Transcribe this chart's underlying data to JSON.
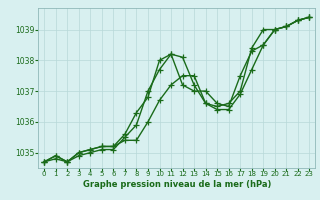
{
  "line1": [
    1034.7,
    1034.8,
    1034.7,
    1034.9,
    1035.0,
    1035.1,
    1035.1,
    1035.5,
    1035.9,
    1037.0,
    1037.7,
    1038.2,
    1038.1,
    1037.2,
    1036.6,
    1036.4,
    1036.4,
    1036.9,
    1037.7,
    1038.5,
    1039.0,
    1039.1,
    1039.3,
    1039.4
  ],
  "line2": [
    1034.7,
    1034.9,
    1034.7,
    1035.0,
    1035.1,
    1035.2,
    1035.2,
    1035.6,
    1036.3,
    1036.8,
    1038.0,
    1038.2,
    1037.2,
    1037.0,
    1037.0,
    1036.6,
    1036.5,
    1037.5,
    1038.3,
    1038.5,
    1039.0,
    1039.1,
    1039.3,
    1039.4
  ],
  "line3": [
    1034.7,
    1034.9,
    1034.7,
    1035.0,
    1035.1,
    1035.2,
    1035.2,
    1035.4,
    1035.4,
    1036.0,
    1036.7,
    1037.2,
    1037.5,
    1037.5,
    1036.6,
    1036.5,
    1036.6,
    1037.0,
    1038.4,
    1039.0,
    1039.0,
    1039.1,
    1039.3,
    1039.4
  ],
  "x": [
    0,
    1,
    2,
    3,
    4,
    5,
    6,
    7,
    8,
    9,
    10,
    11,
    12,
    13,
    14,
    15,
    16,
    17,
    18,
    19,
    20,
    21,
    22,
    23
  ],
  "ylim": [
    1034.5,
    1039.7
  ],
  "yticks": [
    1035,
    1036,
    1037,
    1038,
    1039
  ],
  "xtick_labels": [
    "0",
    "1",
    "2",
    "3",
    "4",
    "5",
    "6",
    "7",
    "8",
    "9",
    "10",
    "11",
    "12",
    "13",
    "14",
    "15",
    "16",
    "17",
    "18",
    "19",
    "20",
    "21",
    "22",
    "23"
  ],
  "xlabel": "Graphe pression niveau de la mer (hPa)",
  "line_color": "#1a6b1a",
  "bg_color": "#d8f0f0",
  "grid_color": "#b8d8d8",
  "tick_color": "#1a6b1a",
  "marker": "+",
  "markersize": 4,
  "linewidth": 1.0
}
